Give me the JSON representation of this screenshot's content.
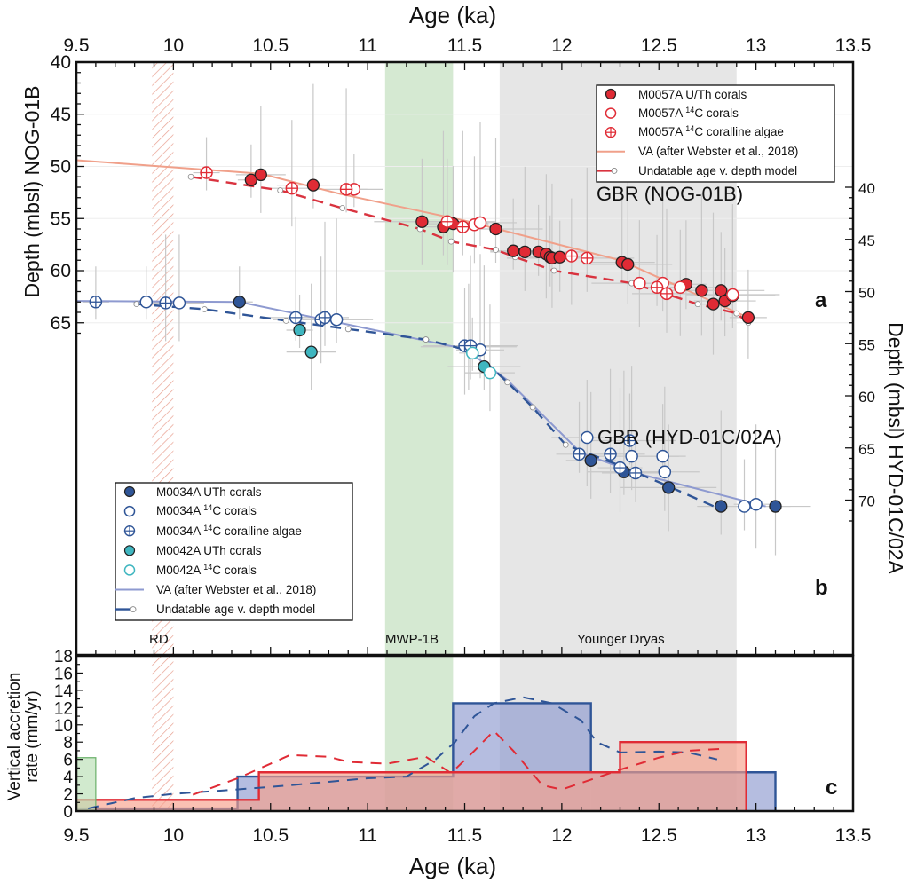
{
  "chart_data": [
    {
      "panel": "a",
      "type": "scatter",
      "site_label": "GBR (NOG-01B)",
      "xlabel": "Age (ka)",
      "ylabel": "Depth (mbsl) NOG-01B",
      "xlim": [
        9.5,
        13.5
      ],
      "ylim": [
        40,
        73.5
      ],
      "x_ticks": [
        "9.5",
        "10",
        "10.5",
        "11",
        "11.5",
        "12",
        "12.5",
        "13",
        "13.5"
      ],
      "y_ticks": [
        "40",
        "45",
        "50",
        "55",
        "60",
        "65"
      ],
      "legend": {
        "position": "top-right",
        "entries": [
          {
            "label": "M0057A U/Th corals",
            "marker": "filled-circle",
            "color": "#e02b35"
          },
          {
            "label_pre": "M0057A ",
            "sup": "14",
            "label_post": "C corals",
            "marker": "open-circle",
            "color": "#e02b35"
          },
          {
            "label_pre": "M0057A ",
            "sup": "14",
            "label_post": "C coralline algae",
            "marker": "crossed-circle",
            "color": "#e02b35"
          },
          {
            "label": "VA (after Webster et al., 2018)",
            "marker": "line",
            "color": "#f0a08a"
          },
          {
            "label": "Undatable age v. depth model",
            "marker": "dashed-line-open-dot",
            "color": "#d9333f"
          }
        ]
      },
      "series": [
        {
          "name": "M0057A U/Th corals",
          "marker": "filled",
          "color": "#e02b35",
          "points": [
            [
              10.4,
              51.3
            ],
            [
              10.45,
              50.8
            ],
            [
              10.72,
              51.8
            ],
            [
              11.28,
              55.3
            ],
            [
              11.39,
              55.8
            ],
            [
              11.44,
              55.5
            ],
            [
              11.66,
              56.0
            ],
            [
              11.75,
              58.1
            ],
            [
              11.81,
              58.2
            ],
            [
              11.88,
              58.2
            ],
            [
              11.92,
              58.4
            ],
            [
              11.94,
              58.7
            ],
            [
              11.95,
              58.8
            ],
            [
              11.99,
              58.7
            ],
            [
              12.31,
              59.2
            ],
            [
              12.34,
              59.4
            ],
            [
              12.64,
              61.3
            ],
            [
              12.72,
              61.9
            ],
            [
              12.82,
              61.9
            ],
            [
              12.78,
              63.2
            ],
            [
              12.84,
              62.9
            ],
            [
              12.88,
              62.4
            ],
            [
              12.96,
              64.5
            ]
          ]
        },
        {
          "name": "M0057A 14C corals",
          "marker": "open",
          "color": "#e02b35",
          "points": [
            [
              10.93,
              52.2
            ],
            [
              11.55,
              55.6
            ],
            [
              11.58,
              55.4
            ],
            [
              12.4,
              61.2
            ],
            [
              12.52,
              61.2
            ],
            [
              12.61,
              61.6
            ],
            [
              12.88,
              62.3
            ]
          ]
        },
        {
          "name": "M0057A 14C coralline algae",
          "marker": "crossed",
          "color": "#e02b35",
          "points": [
            [
              10.17,
              50.6
            ],
            [
              10.61,
              52.1
            ],
            [
              10.89,
              52.2
            ],
            [
              11.41,
              55.3
            ],
            [
              11.49,
              55.8
            ],
            [
              12.05,
              58.6
            ],
            [
              12.13,
              58.8
            ],
            [
              12.49,
              61.6
            ],
            [
              12.54,
              62.2
            ]
          ]
        },
        {
          "name": "VA (after Webster et al., 2018)",
          "marker": "line",
          "color": "#f0a08a",
          "points": [
            [
              9.5,
              49.4
            ],
            [
              10.45,
              50.7
            ],
            [
              10.85,
              52.6
            ],
            [
              11.5,
              55.2
            ],
            [
              12.3,
              59.0
            ],
            [
              12.96,
              64.5
            ]
          ]
        },
        {
          "name": "Undatable age v. depth model",
          "marker": "dashed",
          "color": "#d9333f",
          "points": [
            [
              10.09,
              51.0
            ],
            [
              10.55,
              52.3
            ],
            [
              10.87,
              54.0
            ],
            [
              11.27,
              56.0
            ],
            [
              11.43,
              57.2
            ],
            [
              11.66,
              58.0
            ],
            [
              11.76,
              58.7
            ],
            [
              11.96,
              60.0
            ],
            [
              12.36,
              61.2
            ],
            [
              12.7,
              63.2
            ],
            [
              12.9,
              64.1
            ],
            [
              12.96,
              65.0
            ]
          ]
        }
      ]
    },
    {
      "panel": "b",
      "type": "scatter",
      "site_label": "GBR (HYD-01C/02A)",
      "ylabel": "Depth (mbsl) HYD-01C/02A",
      "ylim": [
        28,
        73.5
      ],
      "y_ticks": [
        "40",
        "45",
        "50",
        "55",
        "60",
        "65",
        "70"
      ],
      "legend": {
        "position": "bottom-left",
        "entries": [
          {
            "label": "M0034A UTh corals",
            "marker": "filled-circle",
            "color": "#2f5597"
          },
          {
            "label_pre": "M0034A ",
            "sup": "14",
            "label_post": "C corals",
            "marker": "open-circle",
            "color": "#2f5597"
          },
          {
            "label_pre": "M0034A ",
            "sup": "14",
            "label_post": "C coralline algae",
            "marker": "crossed-circle",
            "color": "#2f5597"
          },
          {
            "label": "M0042A UTh corals",
            "marker": "filled-circle",
            "color": "#3fb6c0"
          },
          {
            "label_pre": "M0042A ",
            "sup": "14",
            "label_post": "C corals",
            "marker": "open-circle",
            "color": "#3fb6c0"
          },
          {
            "label": "VA (after Webster et al., 2018)",
            "marker": "line",
            "color": "#8e9ad0"
          },
          {
            "label": "Undatable age v. depth model",
            "marker": "dashed-line-open-dot",
            "color": "#2f5597"
          }
        ]
      },
      "series": [
        {
          "name": "M0034A UTh corals",
          "marker": "filled",
          "color": "#2f5597",
          "points": [
            [
              10.34,
              51.0
            ],
            [
              12.15,
              66.2
            ],
            [
              12.32,
              67.3
            ],
            [
              12.55,
              68.8
            ],
            [
              12.82,
              70.6
            ],
            [
              13.1,
              70.6
            ]
          ]
        },
        {
          "name": "M0034A 14C corals",
          "marker": "open",
          "color": "#2f5597",
          "points": [
            [
              9.86,
              51.0
            ],
            [
              10.03,
              51.1
            ],
            [
              10.84,
              52.7
            ],
            [
              11.52,
              55.3
            ],
            [
              11.58,
              55.6
            ],
            [
              12.13,
              64.0
            ],
            [
              12.36,
              65.8
            ],
            [
              12.52,
              65.8
            ],
            [
              12.53,
              67.3
            ],
            [
              12.94,
              70.6
            ],
            [
              13.0,
              70.4
            ]
          ]
        },
        {
          "name": "M0034A 14C coralline algae",
          "marker": "crossed",
          "color": "#2f5597",
          "points": [
            [
              9.6,
              51.0
            ],
            [
              9.96,
              51.1
            ],
            [
              10.63,
              52.5
            ],
            [
              10.76,
              52.7
            ],
            [
              10.78,
              52.5
            ],
            [
              11.5,
              55.2
            ],
            [
              11.53,
              55.2
            ],
            [
              12.09,
              65.6
            ],
            [
              12.25,
              65.6
            ],
            [
              12.35,
              64.3
            ],
            [
              12.3,
              66.9
            ],
            [
              12.38,
              67.4
            ]
          ]
        },
        {
          "name": "M0042A UTh corals",
          "marker": "filled",
          "color": "#3fb6c0",
          "points": [
            [
              10.65,
              53.7
            ],
            [
              10.71,
              55.8
            ],
            [
              11.6,
              57.2
            ]
          ]
        },
        {
          "name": "M0042A 14C corals",
          "marker": "open",
          "color": "#3fb6c0",
          "points": [
            [
              11.54,
              55.9
            ],
            [
              11.63,
              57.8
            ]
          ]
        },
        {
          "name": "VA (after Webster et al., 2018)",
          "marker": "line",
          "color": "#8e9ad0",
          "points": [
            [
              9.5,
              50.9
            ],
            [
              10.34,
              51.0
            ],
            [
              11.5,
              55.5
            ],
            [
              11.72,
              58.5
            ],
            [
              12.1,
              65.5
            ],
            [
              12.4,
              67.5
            ],
            [
              13.05,
              70.6
            ]
          ]
        },
        {
          "name": "Undatable age v. depth model",
          "marker": "dashed",
          "color": "#2f5597",
          "points": [
            [
              9.81,
              51.2
            ],
            [
              10.16,
              51.7
            ],
            [
              10.58,
              52.8
            ],
            [
              10.9,
              53.6
            ],
            [
              11.3,
              54.6
            ],
            [
              11.55,
              55.8
            ],
            [
              11.72,
              58.7
            ],
            [
              11.85,
              61.1
            ],
            [
              12.02,
              64.7
            ],
            [
              12.3,
              66.7
            ],
            [
              12.54,
              68.6
            ],
            [
              12.82,
              70.9
            ]
          ]
        }
      ]
    },
    {
      "panel": "c",
      "type": "bar",
      "xlabel": "Age (ka)",
      "ylabel_line1": "Vertical accretion",
      "ylabel_line2": "rate (mm/yr)",
      "xlim": [
        9.5,
        13.5
      ],
      "ylim": [
        0,
        18
      ],
      "y_ticks": [
        "0",
        "2",
        "4",
        "6",
        "8",
        "10",
        "12",
        "14",
        "16",
        "18"
      ],
      "series": [
        {
          "name": "HYD-01C/02A rate (step)",
          "color": "#2f5597",
          "fill": "#8e9ad0",
          "steps": [
            [
              9.5,
              10.33,
              0.3
            ],
            [
              10.33,
              11.44,
              4.0
            ],
            [
              11.44,
              12.15,
              12.5
            ],
            [
              12.15,
              13.1,
              4.5
            ]
          ]
        },
        {
          "name": "NOG-01B rate (step)",
          "color": "#e02b35",
          "fill": "#f7a08a",
          "steps": [
            [
              9.5,
              10.44,
              1.3
            ],
            [
              10.44,
              12.3,
              4.5
            ],
            [
              12.3,
              12.95,
              8.0
            ]
          ]
        },
        {
          "name": "Other site rate",
          "color": "#6ab06a",
          "fill": "#b9deb4",
          "steps": [
            [
              9.5,
              9.6,
              6.2
            ]
          ]
        },
        {
          "name": "HYD-01C/02A smoothed",
          "style": "dashed",
          "color": "#2f5597",
          "points": [
            [
              9.56,
              0.3
            ],
            [
              9.8,
              1.5
            ],
            [
              10.0,
              2.0
            ],
            [
              10.2,
              2.3
            ],
            [
              10.5,
              2.8
            ],
            [
              10.8,
              3.4
            ],
            [
              11.0,
              3.8
            ],
            [
              11.2,
              4.0
            ],
            [
              11.35,
              6.0
            ],
            [
              11.45,
              8.0
            ],
            [
              11.55,
              11.0
            ],
            [
              11.65,
              12.5
            ],
            [
              11.8,
              13.2
            ],
            [
              11.95,
              12.5
            ],
            [
              12.1,
              10.5
            ],
            [
              12.18,
              8.0
            ],
            [
              12.3,
              6.8
            ],
            [
              12.5,
              6.9
            ],
            [
              12.65,
              6.8
            ],
            [
              12.8,
              6.0
            ]
          ]
        },
        {
          "name": "NOG-01B smoothed",
          "style": "dashed",
          "color": "#e02b35",
          "points": [
            [
              10.1,
              1.9
            ],
            [
              10.33,
              3.8
            ],
            [
              10.5,
              5.5
            ],
            [
              10.6,
              6.5
            ],
            [
              10.8,
              6.3
            ],
            [
              10.9,
              5.7
            ],
            [
              11.1,
              5.5
            ],
            [
              11.3,
              6.3
            ],
            [
              11.43,
              4.4
            ],
            [
              11.55,
              7.0
            ],
            [
              11.65,
              9.3
            ],
            [
              11.75,
              7.0
            ],
            [
              11.9,
              3.0
            ],
            [
              12.0,
              2.5
            ],
            [
              12.3,
              4.8
            ],
            [
              12.5,
              6.2
            ],
            [
              12.65,
              7.0
            ],
            [
              12.81,
              7.2
            ]
          ]
        }
      ]
    }
  ],
  "periods": [
    {
      "label": "RD",
      "start": 9.89,
      "end": 10.0,
      "style": "hatched",
      "color": "#e8a090"
    },
    {
      "label": "MWP-1B",
      "start": 11.09,
      "end": 11.44,
      "style": "fill",
      "color": "#d5e9d2"
    },
    {
      "label": "Younger Dryas",
      "start": 11.68,
      "end": 12.9,
      "style": "fill",
      "color": "#e6e6e6"
    }
  ],
  "top_axis_title": "Age (ka)",
  "bottom_axis_title": "Age (ka)",
  "panel_letters": [
    "a",
    "b",
    "c"
  ]
}
